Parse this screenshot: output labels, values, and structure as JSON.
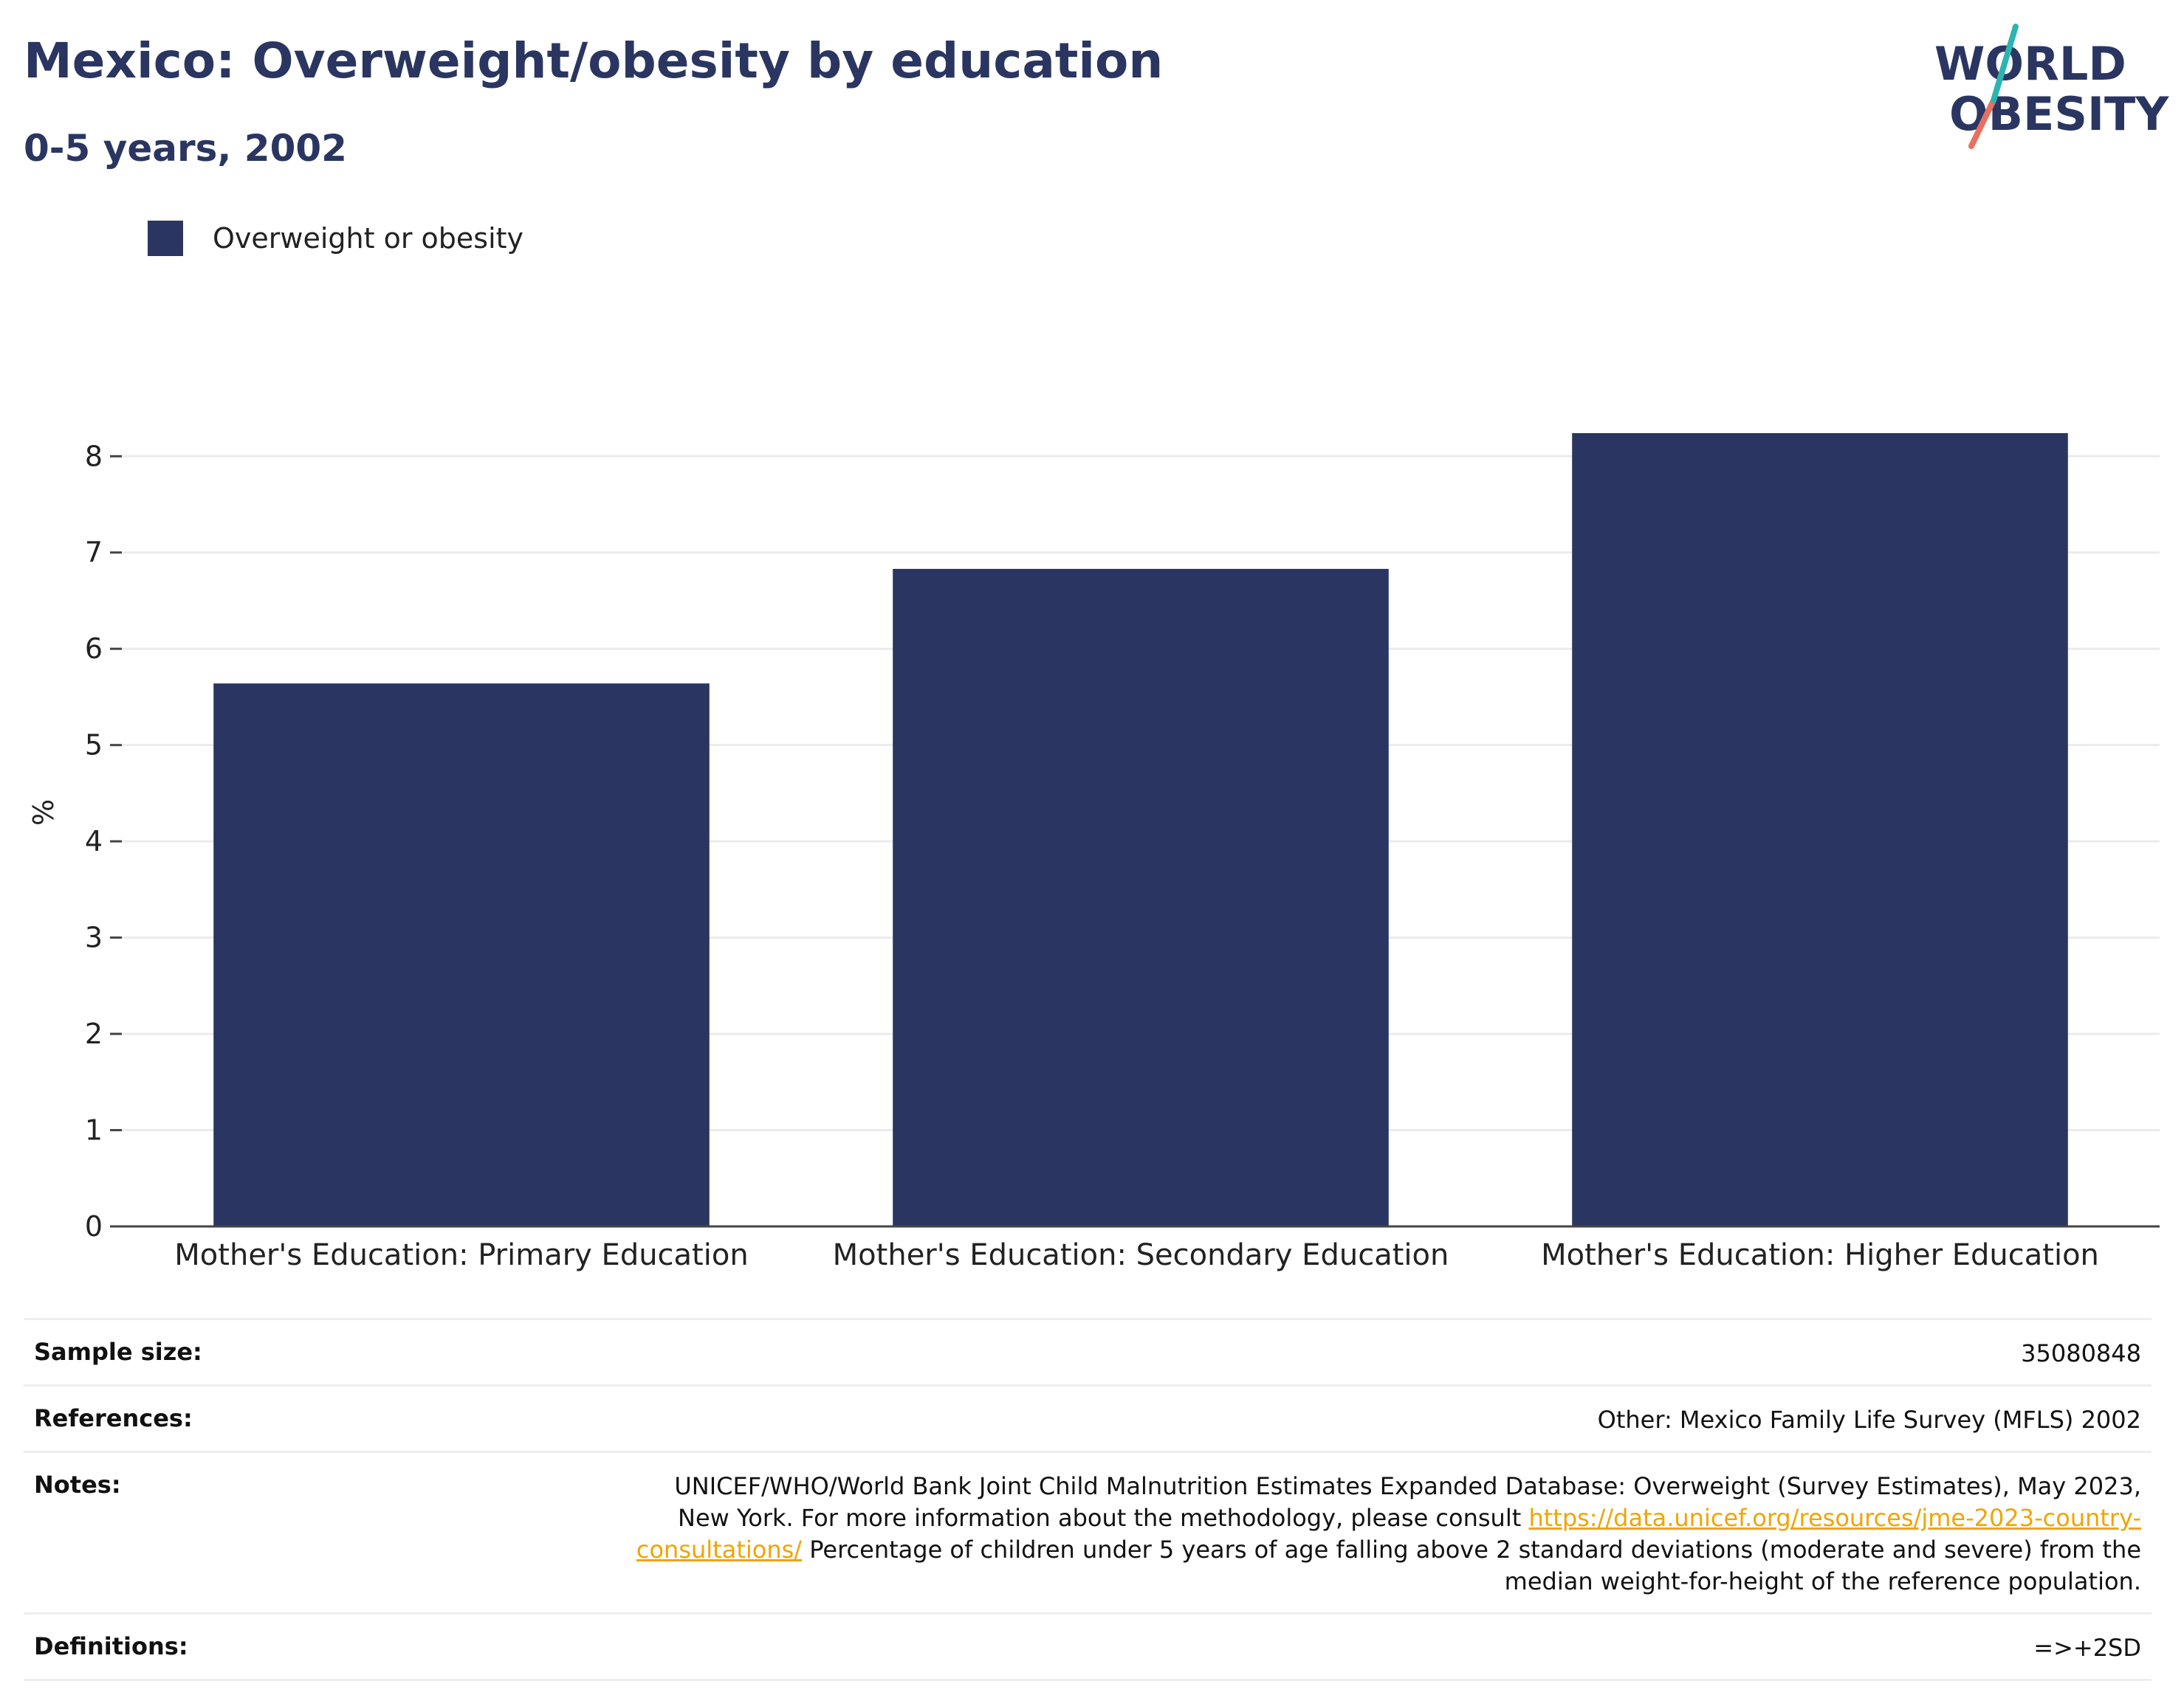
{
  "header": {
    "title": "Mexico: Overweight/obesity by education",
    "subtitle": "0-5 years, 2002"
  },
  "logo": {
    "line1": "WORLD",
    "line2": "OBESITY"
  },
  "legend": {
    "label": "Overweight or obesity"
  },
  "chart_data": {
    "type": "bar",
    "categories": [
      "Mother's Education: Primary Education",
      "Mother's Education: Secondary Education",
      "Mother's Education: Higher Education"
    ],
    "series": [
      {
        "name": "Overweight or obesity",
        "values": [
          5.64,
          6.83,
          8.24
        ],
        "color": "#2a3661"
      }
    ],
    "ylabel": "%",
    "ylim": [
      0,
      8.6
    ],
    "yticks": [
      0,
      1,
      2,
      3,
      4,
      5,
      6,
      7,
      8
    ],
    "grid": true,
    "legend_position": "top-left"
  },
  "info_table": {
    "sample_size": {
      "label": "Sample size:",
      "value": "35080848"
    },
    "references": {
      "label": "References:",
      "value": "Other: Mexico Family Life Survey (MFLS) 2002"
    },
    "notes": {
      "label": "Notes:",
      "text_before": "UNICEF/WHO/World Bank Joint Child Malnutrition Estimates Expanded Database: Overweight (Survey Estimates), May 2023, New York. For more information about the methodology, please consult ",
      "link": "https://data.unicef.org/resources/jme-2023-country-consultations/",
      "text_after": " Percentage of children under 5 years of age falling above 2 standard deviations (moderate and severe) from the median weight-for-height of the reference population."
    },
    "definitions": {
      "label": "Definitions:",
      "value": "=>+2SD"
    }
  },
  "colors": {
    "brand_navy": "#2a3661",
    "logo_teal": "#2bb5b0",
    "logo_coral": "#e8705f",
    "link": "#f0a500"
  }
}
